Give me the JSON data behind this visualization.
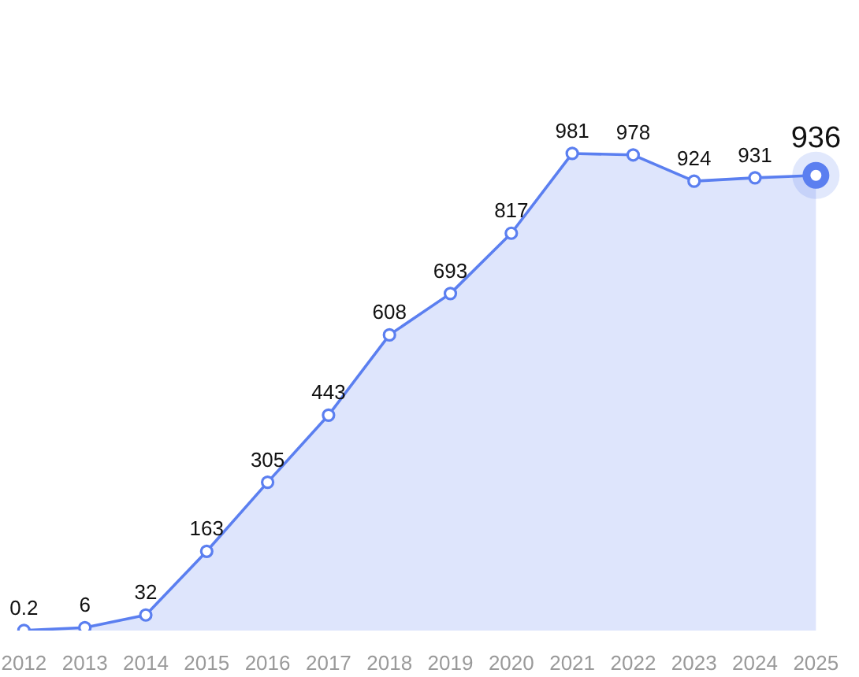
{
  "chart_data": {
    "type": "area",
    "categories": [
      "2012",
      "2013",
      "2014",
      "2015",
      "2016",
      "2017",
      "2018",
      "2019",
      "2020",
      "2021",
      "2022",
      "2023",
      "2024",
      "2025"
    ],
    "series": [
      {
        "color": "#5b7ff0",
        "values": [
          0.2,
          6,
          32,
          163,
          305,
          443,
          608,
          693,
          817,
          981,
          978,
          924,
          931,
          936
        ],
        "value_labels": [
          "0.2",
          "6",
          "32",
          "163",
          "305",
          "443",
          "608",
          "693",
          "817",
          "981",
          "978",
          "924",
          "931",
          null
        ]
      },
      {
        "type": "scatter",
        "color": "#5b7ff0",
        "values": [
          null,
          null,
          null,
          null,
          null,
          null,
          null,
          null,
          null,
          null,
          null,
          null,
          null,
          936
        ],
        "value_labels": [
          null,
          null,
          null,
          null,
          null,
          null,
          null,
          null,
          null,
          null,
          null,
          null,
          null,
          "936"
        ]
      }
    ],
    "grid": false,
    "marker": "circle",
    "line_style": "solid"
  }
}
